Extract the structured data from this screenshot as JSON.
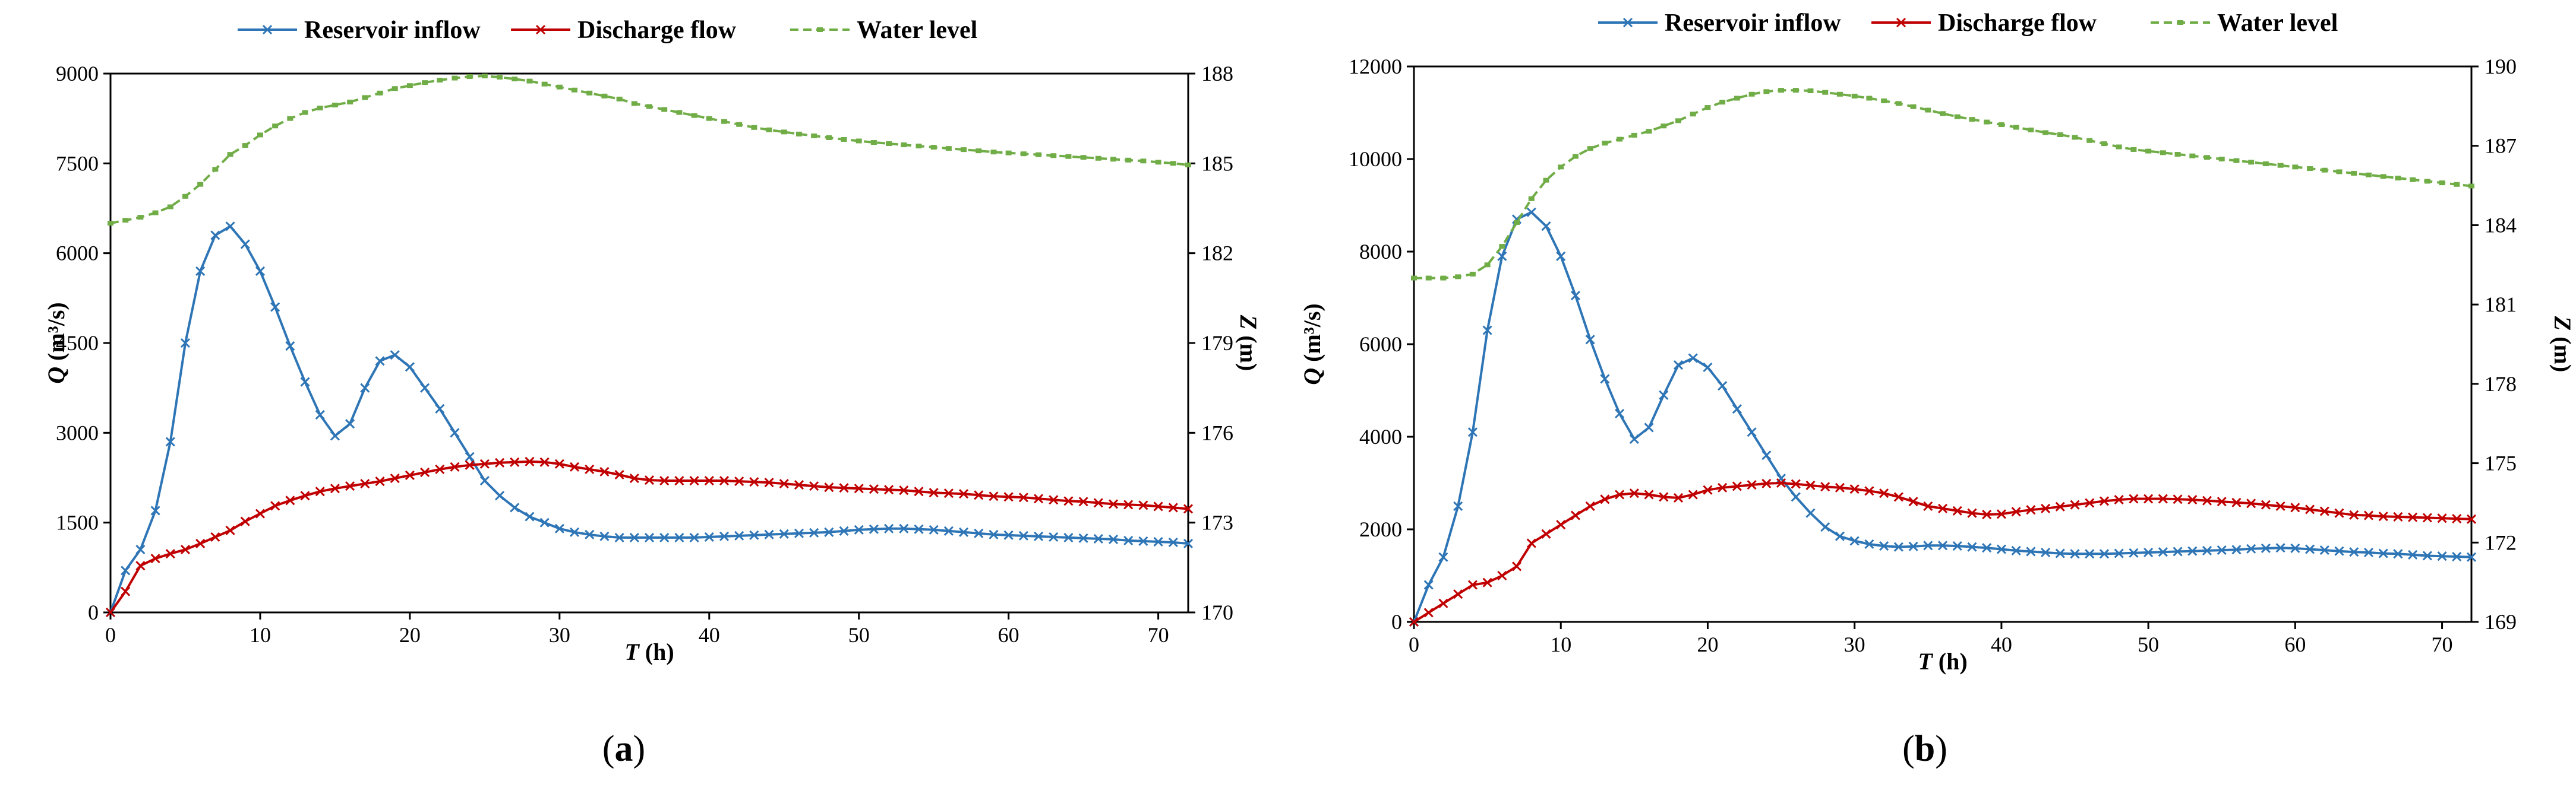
{
  "chart_data": [
    {
      "type": "line",
      "caption_left": "(",
      "caption_letter": "a",
      "caption_right": ")",
      "xlabel_italic": "T",
      "xlabel_unit": " (h)",
      "ylabel_left_italic": "Q",
      "ylabel_left_unit": " (m³/s)",
      "ylabel_right_italic": "Z",
      "ylabel_right_unit": " (m)",
      "xlim": [
        0,
        72
      ],
      "xticks": [
        0,
        10,
        20,
        30,
        40,
        50,
        60,
        70
      ],
      "ylim_left": [
        0,
        9000
      ],
      "yticks_left": [
        0,
        1500,
        3000,
        4500,
        6000,
        7500,
        9000
      ],
      "ylim_right": [
        170,
        188
      ],
      "yticks_right": [
        170,
        173,
        176,
        179,
        182,
        185,
        188
      ],
      "legend": [
        "Reservoir inflow",
        "Discharge flow",
        "Water level"
      ],
      "series": [
        {
          "name": "Reservoir inflow",
          "axis": "left",
          "color": "#2e75b6",
          "marker": "x",
          "x": [
            0,
            1,
            2,
            3,
            4,
            5,
            6,
            7,
            8,
            9,
            10,
            11,
            12,
            13,
            14,
            15,
            16,
            17,
            18,
            19,
            20,
            21,
            22,
            23,
            24,
            25,
            26,
            27,
            28,
            29,
            30,
            31,
            32,
            33,
            34,
            35,
            36,
            37,
            38,
            39,
            40,
            41,
            42,
            43,
            44,
            45,
            46,
            47,
            48,
            49,
            50,
            51,
            52,
            53,
            54,
            55,
            56,
            57,
            58,
            59,
            60,
            61,
            62,
            63,
            64,
            65,
            66,
            67,
            68,
            69,
            70,
            71,
            72
          ],
          "values": [
            0,
            700,
            1050,
            1700,
            2850,
            4500,
            5700,
            6300,
            6450,
            6150,
            5700,
            5100,
            4450,
            3850,
            3300,
            2950,
            3150,
            3750,
            4200,
            4300,
            4100,
            3750,
            3400,
            3000,
            2600,
            2200,
            1950,
            1750,
            1600,
            1500,
            1400,
            1340,
            1300,
            1270,
            1250,
            1250,
            1250,
            1250,
            1250,
            1250,
            1260,
            1270,
            1280,
            1290,
            1300,
            1310,
            1320,
            1330,
            1340,
            1360,
            1380,
            1390,
            1400,
            1400,
            1390,
            1380,
            1360,
            1340,
            1320,
            1300,
            1290,
            1280,
            1270,
            1260,
            1250,
            1240,
            1230,
            1220,
            1200,
            1190,
            1180,
            1170,
            1150
          ]
        },
        {
          "name": "Discharge flow",
          "axis": "left",
          "color": "#c00000",
          "marker": "x",
          "x": [
            0,
            1,
            2,
            3,
            4,
            5,
            6,
            7,
            8,
            9,
            10,
            11,
            12,
            13,
            14,
            15,
            16,
            17,
            18,
            19,
            20,
            21,
            22,
            23,
            24,
            25,
            26,
            27,
            28,
            29,
            30,
            31,
            32,
            33,
            34,
            35,
            36,
            37,
            38,
            39,
            40,
            41,
            42,
            43,
            44,
            45,
            46,
            47,
            48,
            49,
            50,
            51,
            52,
            53,
            54,
            55,
            56,
            57,
            58,
            59,
            60,
            61,
            62,
            63,
            64,
            65,
            66,
            67,
            68,
            69,
            70,
            71,
            72
          ],
          "values": [
            0,
            350,
            780,
            900,
            980,
            1050,
            1150,
            1260,
            1370,
            1520,
            1650,
            1780,
            1870,
            1950,
            2020,
            2070,
            2110,
            2150,
            2190,
            2240,
            2290,
            2340,
            2390,
            2430,
            2460,
            2480,
            2500,
            2510,
            2520,
            2510,
            2480,
            2430,
            2390,
            2350,
            2300,
            2240,
            2210,
            2200,
            2200,
            2200,
            2200,
            2200,
            2190,
            2180,
            2170,
            2150,
            2130,
            2110,
            2090,
            2080,
            2070,
            2060,
            2050,
            2040,
            2020,
            2000,
            1990,
            1980,
            1960,
            1940,
            1930,
            1920,
            1900,
            1880,
            1860,
            1850,
            1830,
            1810,
            1800,
            1790,
            1770,
            1750,
            1730
          ]
        },
        {
          "name": "Water level",
          "axis": "right",
          "color": "#70ad47",
          "marker": "dash",
          "x": [
            0,
            1,
            2,
            3,
            4,
            5,
            6,
            7,
            8,
            9,
            10,
            11,
            12,
            13,
            14,
            15,
            16,
            17,
            18,
            19,
            20,
            21,
            22,
            23,
            24,
            25,
            26,
            27,
            28,
            29,
            30,
            31,
            32,
            33,
            34,
            35,
            36,
            37,
            38,
            39,
            40,
            41,
            42,
            43,
            44,
            45,
            46,
            47,
            48,
            49,
            50,
            51,
            52,
            53,
            54,
            55,
            56,
            57,
            58,
            59,
            60,
            61,
            62,
            63,
            64,
            65,
            66,
            67,
            68,
            69,
            70,
            71,
            72
          ],
          "values": [
            183.0,
            183.1,
            183.2,
            183.35,
            183.55,
            183.9,
            184.3,
            184.8,
            185.3,
            185.6,
            185.95,
            186.25,
            186.5,
            186.7,
            186.85,
            186.95,
            187.05,
            187.2,
            187.35,
            187.5,
            187.6,
            187.7,
            187.78,
            187.85,
            187.9,
            187.92,
            187.88,
            187.82,
            187.75,
            187.65,
            187.55,
            187.45,
            187.35,
            187.25,
            187.15,
            187.0,
            186.9,
            186.8,
            186.7,
            186.6,
            186.5,
            186.4,
            186.3,
            186.2,
            186.12,
            186.05,
            185.98,
            185.92,
            185.86,
            185.8,
            185.75,
            185.7,
            185.66,
            185.62,
            185.58,
            185.54,
            185.5,
            185.46,
            185.42,
            185.38,
            185.35,
            185.32,
            185.29,
            185.26,
            185.23,
            185.2,
            185.17,
            185.14,
            185.11,
            185.08,
            185.04,
            185.0,
            184.95
          ]
        }
      ]
    },
    {
      "type": "line",
      "caption_left": "(",
      "caption_letter": "b",
      "caption_right": ")",
      "xlabel_italic": "T",
      "xlabel_unit": " (h)",
      "ylabel_left_italic": "Q",
      "ylabel_left_unit": " (m³/s)",
      "ylabel_right_italic": "Z",
      "ylabel_right_unit": " (m)",
      "xlim": [
        0,
        72
      ],
      "xticks": [
        0,
        10,
        20,
        30,
        40,
        50,
        60,
        70
      ],
      "ylim_left": [
        0,
        12000
      ],
      "yticks_left": [
        0,
        2000,
        4000,
        6000,
        8000,
        10000,
        12000
      ],
      "ylim_right": [
        169,
        190
      ],
      "yticks_right": [
        169,
        172,
        175,
        178,
        181,
        184,
        187,
        190
      ],
      "legend": [
        "Reservoir inflow",
        "Discharge flow",
        "Water level"
      ],
      "series": [
        {
          "name": "Reservoir inflow",
          "axis": "left",
          "color": "#2e75b6",
          "marker": "x",
          "x": [
            0,
            1,
            2,
            3,
            4,
            5,
            6,
            7,
            8,
            9,
            10,
            11,
            12,
            13,
            14,
            15,
            16,
            17,
            18,
            19,
            20,
            21,
            22,
            23,
            24,
            25,
            26,
            27,
            28,
            29,
            30,
            31,
            32,
            33,
            34,
            35,
            36,
            37,
            38,
            39,
            40,
            41,
            42,
            43,
            44,
            45,
            46,
            47,
            48,
            49,
            50,
            51,
            52,
            53,
            54,
            55,
            56,
            57,
            58,
            59,
            60,
            61,
            62,
            63,
            64,
            65,
            66,
            67,
            68,
            69,
            70,
            71,
            72
          ],
          "values": [
            0,
            800,
            1400,
            2500,
            4100,
            6300,
            7900,
            8700,
            8850,
            8550,
            7900,
            7050,
            6100,
            5250,
            4500,
            3950,
            4200,
            4900,
            5550,
            5700,
            5500,
            5100,
            4600,
            4100,
            3600,
            3100,
            2700,
            2350,
            2050,
            1850,
            1750,
            1680,
            1640,
            1620,
            1630,
            1650,
            1650,
            1640,
            1620,
            1600,
            1570,
            1540,
            1520,
            1500,
            1480,
            1470,
            1470,
            1470,
            1480,
            1490,
            1500,
            1510,
            1520,
            1530,
            1540,
            1550,
            1560,
            1580,
            1590,
            1600,
            1590,
            1570,
            1550,
            1530,
            1510,
            1500,
            1480,
            1470,
            1450,
            1430,
            1420,
            1410,
            1400
          ]
        },
        {
          "name": "Discharge flow",
          "axis": "left",
          "color": "#c00000",
          "marker": "x",
          "x": [
            0,
            1,
            2,
            3,
            4,
            5,
            6,
            7,
            8,
            9,
            10,
            11,
            12,
            13,
            14,
            15,
            16,
            17,
            18,
            19,
            20,
            21,
            22,
            23,
            24,
            25,
            26,
            27,
            28,
            29,
            30,
            31,
            32,
            33,
            34,
            35,
            36,
            37,
            38,
            39,
            40,
            41,
            42,
            43,
            44,
            45,
            46,
            47,
            48,
            49,
            50,
            51,
            52,
            53,
            54,
            55,
            56,
            57,
            58,
            59,
            60,
            61,
            62,
            63,
            64,
            65,
            66,
            67,
            68,
            69,
            70,
            71,
            72
          ],
          "values": [
            0,
            200,
            400,
            600,
            800,
            850,
            1000,
            1200,
            1700,
            1900,
            2100,
            2300,
            2500,
            2650,
            2750,
            2780,
            2750,
            2700,
            2680,
            2750,
            2850,
            2900,
            2930,
            2960,
            2990,
            3000,
            2980,
            2950,
            2920,
            2900,
            2870,
            2830,
            2780,
            2700,
            2600,
            2500,
            2450,
            2400,
            2350,
            2320,
            2330,
            2380,
            2420,
            2450,
            2490,
            2530,
            2570,
            2610,
            2640,
            2660,
            2660,
            2660,
            2650,
            2640,
            2620,
            2600,
            2580,
            2560,
            2530,
            2500,
            2470,
            2430,
            2390,
            2350,
            2310,
            2300,
            2280,
            2270,
            2260,
            2250,
            2240,
            2230,
            2220
          ]
        },
        {
          "name": "Water level",
          "axis": "right",
          "color": "#70ad47",
          "marker": "dash",
          "x": [
            0,
            1,
            2,
            3,
            4,
            5,
            6,
            7,
            8,
            9,
            10,
            11,
            12,
            13,
            14,
            15,
            16,
            17,
            18,
            19,
            20,
            21,
            22,
            23,
            24,
            25,
            26,
            27,
            28,
            29,
            30,
            31,
            32,
            33,
            34,
            35,
            36,
            37,
            38,
            39,
            40,
            41,
            42,
            43,
            44,
            45,
            46,
            47,
            48,
            49,
            50,
            51,
            52,
            53,
            54,
            55,
            56,
            57,
            58,
            59,
            60,
            61,
            62,
            63,
            64,
            65,
            66,
            67,
            68,
            69,
            70,
            71,
            72
          ],
          "values": [
            182.0,
            182.0,
            182.0,
            182.05,
            182.15,
            182.5,
            183.2,
            184.1,
            185.0,
            185.7,
            186.2,
            186.6,
            186.9,
            187.1,
            187.25,
            187.4,
            187.55,
            187.75,
            187.95,
            188.2,
            188.45,
            188.65,
            188.8,
            188.95,
            189.05,
            189.1,
            189.1,
            189.08,
            189.02,
            188.95,
            188.88,
            188.8,
            188.7,
            188.6,
            188.48,
            188.35,
            188.22,
            188.1,
            188.0,
            187.9,
            187.8,
            187.7,
            187.6,
            187.5,
            187.42,
            187.32,
            187.2,
            187.08,
            186.96,
            186.86,
            186.8,
            186.74,
            186.68,
            186.62,
            186.56,
            186.5,
            186.44,
            186.38,
            186.32,
            186.26,
            186.2,
            186.14,
            186.08,
            186.02,
            185.96,
            185.9,
            185.84,
            185.78,
            185.72,
            185.66,
            185.6,
            185.54,
            185.48
          ]
        }
      ]
    }
  ]
}
